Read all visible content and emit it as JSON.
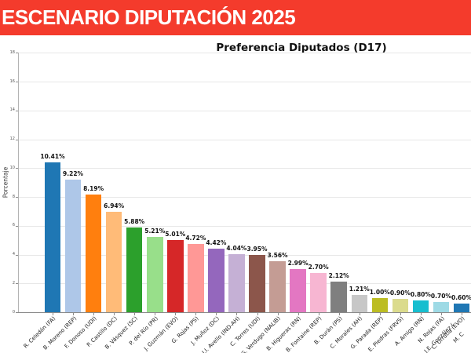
{
  "header": {
    "title": "ESCENARIO DIPUTACIÓN 2025",
    "banner_color": "#f43b2c"
  },
  "chart_data": {
    "type": "bar",
    "title": "Preferencia Diputados (D17)",
    "ylabel": "Porcentaje",
    "ylim": [
      0,
      18
    ],
    "yticks": [
      0,
      2,
      4,
      6,
      8,
      10,
      12,
      14,
      16,
      18
    ],
    "grid": true,
    "value_label_suffix": "%",
    "categories": [
      "R. Celedón (FA)",
      "B. Moreno (REP)",
      "F. Donoso (UDI)",
      "P. Castillo (DC)",
      "B. Vásquez (SC)",
      "P. del Río (PR)",
      "J. Guzmán (EVO)",
      "G. Rojas (PS)",
      "J. Muñoz (DC)",
      "J.I. Avello (IND-AH)",
      "C. Torres (UDI)",
      "G. Verdugo (NALIB)",
      "B. Higueras (RN)",
      "B. Fontaine (REP)",
      "B. Durán (PS)",
      "C. Morales (AH)",
      "G. Parada (REP)",
      "E. Piedras (FRVS)",
      "A. Amigo (RN)",
      "N. Rojas (FA)",
      "C. Urrutia (EVO)"
    ],
    "values": [
      10.41,
      9.22,
      8.19,
      6.94,
      5.88,
      5.21,
      5.01,
      4.72,
      4.42,
      4.04,
      3.95,
      3.56,
      2.99,
      2.7,
      2.12,
      1.21,
      1.0,
      0.9,
      0.8,
      0.7,
      0.6
    ],
    "bar_colors": [
      "#1f77b4",
      "#aec7e8",
      "#ff7f0e",
      "#ffbb78",
      "#2ca02c",
      "#98df8a",
      "#d62728",
      "#ff9896",
      "#9467bd",
      "#c5b0d5",
      "#8c564b",
      "#c49c94",
      "#e377c2",
      "#f7b6d2",
      "#7f7f7f",
      "#c7c7c7",
      "#bcbd22",
      "#dbdb8d",
      "#17becf",
      "#9edae5",
      "#1f77b4"
    ],
    "clipped_right_labels": [
      "J.E. González (",
      "M. C"
    ]
  }
}
